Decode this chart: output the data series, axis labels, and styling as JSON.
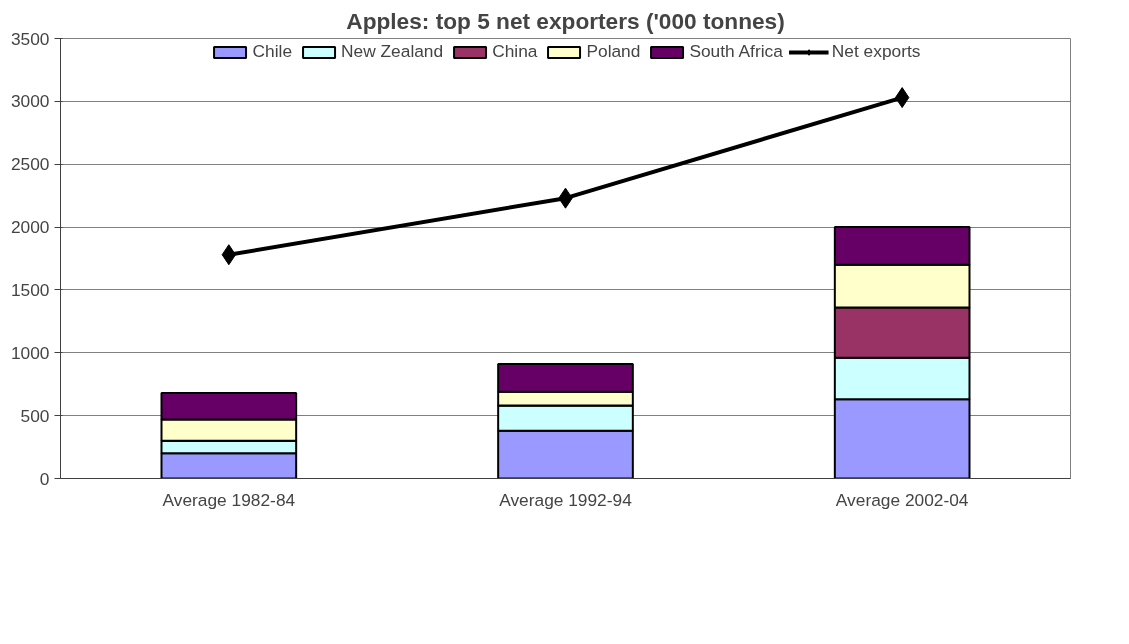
{
  "chart_data": {
    "type": "bar",
    "title": "Apples: top 5 net exporters ('000 tonnes)",
    "stacked": true,
    "categories": [
      "Average 1982-84",
      "Average 1992-94",
      "Average 2002-04"
    ],
    "series": [
      {
        "name": "Chile",
        "color": "#9999ff",
        "values": [
          200,
          380,
          630
        ]
      },
      {
        "name": "New Zealand",
        "color": "#ccffff",
        "values": [
          100,
          200,
          330
        ]
      },
      {
        "name": "China",
        "color": "#993366",
        "values": [
          0,
          0,
          400
        ]
      },
      {
        "name": "Poland",
        "color": "#ffffcc",
        "values": [
          170,
          110,
          340
        ]
      },
      {
        "name": "South Africa",
        "color": "#660066",
        "values": [
          210,
          220,
          300
        ]
      },
      {
        "name": "Net exports",
        "type": "line",
        "color": "#000000",
        "marker": "diamond",
        "values": [
          1780,
          2230,
          3030
        ]
      }
    ],
    "ylim": [
      0,
      3500
    ],
    "yticks": [
      0,
      500,
      1000,
      1500,
      2000,
      2500,
      3000,
      3500
    ],
    "grid": "y",
    "legend": "top"
  }
}
